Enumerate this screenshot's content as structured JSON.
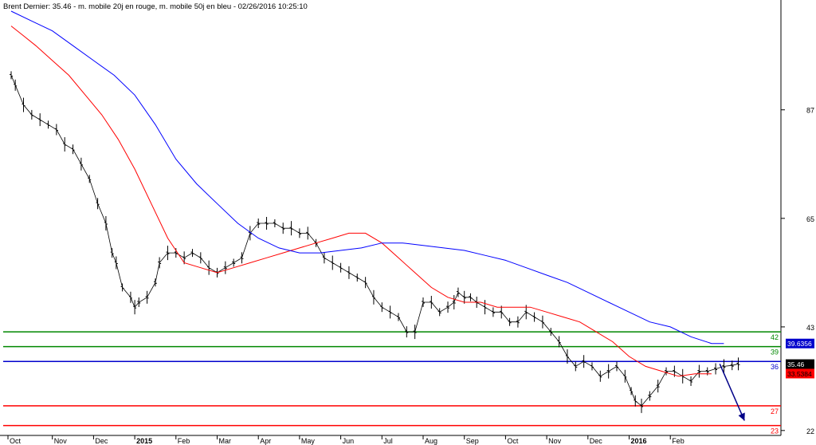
{
  "chart_data": {
    "type": "line",
    "title": "Brent Dernier: 35.46 - m. mobile 20j en rouge, m. mobile 50j en bleu - 02/26/2016 10:25:10",
    "x": [
      "Oct",
      "Nov",
      "Dec",
      "2015",
      "Feb",
      "Mar",
      "Apr",
      "May",
      "Jun",
      "Jul",
      "Aug",
      "Sep",
      "Oct",
      "Nov",
      "Dec",
      "2016",
      "Feb"
    ],
    "y_ticks": [
      87,
      65,
      43,
      22
    ],
    "ylim": [
      21,
      107
    ],
    "series": [
      {
        "key": "price",
        "color": "#000000",
        "x": [
          0,
          0.1,
          0.3,
          0.5,
          0.7,
          0.9,
          1.1,
          1.3,
          1.5,
          1.7,
          1.9,
          2.1,
          2.3,
          2.45,
          2.55,
          2.7,
          2.9,
          3.0,
          3.1,
          3.3,
          3.5,
          3.6,
          3.8,
          4.0,
          4.2,
          4.4,
          4.6,
          4.8,
          5.0,
          5.2,
          5.4,
          5.6,
          5.8,
          6.0,
          6.2,
          6.4,
          6.6,
          6.8,
          7.0,
          7.2,
          7.4,
          7.6,
          7.8,
          8.0,
          8.2,
          8.4,
          8.6,
          8.8,
          9.0,
          9.2,
          9.4,
          9.6,
          9.8,
          10.0,
          10.2,
          10.4,
          10.6,
          10.75,
          10.85,
          11.0,
          11.15,
          11.3,
          11.5,
          11.7,
          11.9,
          12.1,
          12.3,
          12.5,
          12.7,
          12.9,
          13.1,
          13.3,
          13.5,
          13.7,
          13.9,
          14.1,
          14.3,
          14.5,
          14.7,
          14.9,
          15.05,
          15.15,
          15.3,
          15.5,
          15.7,
          15.9,
          16.1,
          16.3,
          16.5,
          16.7,
          16.9,
          17.1,
          17.3,
          17.5,
          17.65
        ],
        "y": [
          94,
          92,
          88,
          86,
          85,
          84,
          83,
          80,
          79,
          76,
          73,
          68,
          64,
          58,
          56,
          51,
          49,
          47,
          48,
          49,
          52,
          56,
          58,
          58,
          57,
          58,
          57,
          55,
          54,
          55,
          56,
          57,
          62,
          64,
          64,
          64,
          63,
          63,
          62,
          62,
          60,
          57,
          56,
          55,
          54,
          53,
          52,
          49,
          47,
          46,
          45,
          42,
          42,
          48,
          48,
          46,
          47,
          48,
          50,
          49,
          49,
          48,
          47,
          46,
          46,
          44,
          44,
          46,
          45,
          44,
          42,
          40,
          37,
          35,
          36,
          35,
          33,
          34,
          35,
          33,
          30,
          28,
          27,
          29,
          31,
          34,
          34,
          33,
          32,
          34,
          34,
          34.5,
          35,
          35.2,
          35.5
        ]
      },
      {
        "key": "ma20",
        "name": "m. mobile 20j",
        "color": "#ff0000",
        "x": [
          0,
          0.3,
          0.6,
          1.0,
          1.4,
          1.8,
          2.2,
          2.6,
          3.0,
          3.4,
          3.8,
          4.2,
          4.6,
          5.0,
          5.4,
          5.8,
          6.2,
          6.6,
          7.0,
          7.4,
          7.8,
          8.2,
          8.6,
          9.0,
          9.4,
          9.8,
          10.2,
          10.6,
          11.0,
          11.4,
          11.8,
          12.2,
          12.6,
          13.0,
          13.4,
          13.8,
          14.2,
          14.6,
          15.0,
          15.4,
          15.8,
          16.2,
          16.6,
          17.0
        ],
        "y": [
          104,
          102,
          100,
          97,
          94,
          90,
          86,
          81,
          75,
          68,
          61,
          56,
          55,
          54,
          55,
          56,
          57,
          58,
          59,
          60,
          61,
          62,
          62,
          60,
          57,
          54,
          51,
          49,
          48,
          48,
          47,
          47,
          47,
          46,
          45,
          44,
          42,
          40,
          37,
          35,
          34,
          33,
          33.5,
          33.5
        ]
      },
      {
        "key": "ma50",
        "name": "m. mobile 50j",
        "color": "#0000ff",
        "x": [
          0,
          0.5,
          1.0,
          1.5,
          2.0,
          2.5,
          3.0,
          3.5,
          4.0,
          4.5,
          5.0,
          5.5,
          6.0,
          6.5,
          7.0,
          7.5,
          8.0,
          8.5,
          9.0,
          9.5,
          10.0,
          10.5,
          11.0,
          11.5,
          12.0,
          12.5,
          13.0,
          13.5,
          14.0,
          14.5,
          15.0,
          15.5,
          16.0,
          16.5,
          17.0,
          17.3
        ],
        "y": [
          107,
          105,
          103,
          100,
          97,
          94,
          90,
          84,
          77,
          72,
          68,
          64,
          61,
          59,
          58,
          58,
          58.5,
          59,
          60,
          60,
          59.5,
          59,
          58.5,
          57.5,
          56.5,
          55,
          53.5,
          52,
          50,
          48,
          46,
          44,
          43,
          41,
          39.6356,
          39.6356
        ]
      }
    ],
    "horizontal_lines": [
      {
        "y": 42,
        "color": "#008800",
        "label": "42"
      },
      {
        "y": 39,
        "color": "#008800",
        "label": "39"
      },
      {
        "y": 36,
        "color": "#0000cc",
        "label": "36"
      },
      {
        "y": 27,
        "color": "#ff0000",
        "label": "27"
      },
      {
        "y": 23,
        "color": "#ff0000",
        "label": "23"
      }
    ],
    "value_tags": [
      {
        "y": 39.6356,
        "label": "39.6356",
        "bg": "#0000cc",
        "fg": "#ffffff"
      },
      {
        "y": 35.46,
        "label": "35.46",
        "bg": "#000000",
        "fg": "#ffffff"
      },
      {
        "y": 33.5384,
        "label": "33.5384",
        "bg": "#ff0000",
        "fg": "#000000"
      }
    ],
    "annotations": [
      {
        "type": "arrow",
        "from": [
          17.2,
          35.5
        ],
        "to": [
          17.8,
          24
        ],
        "color": "#000088"
      }
    ],
    "grid": false,
    "legend": "title"
  }
}
